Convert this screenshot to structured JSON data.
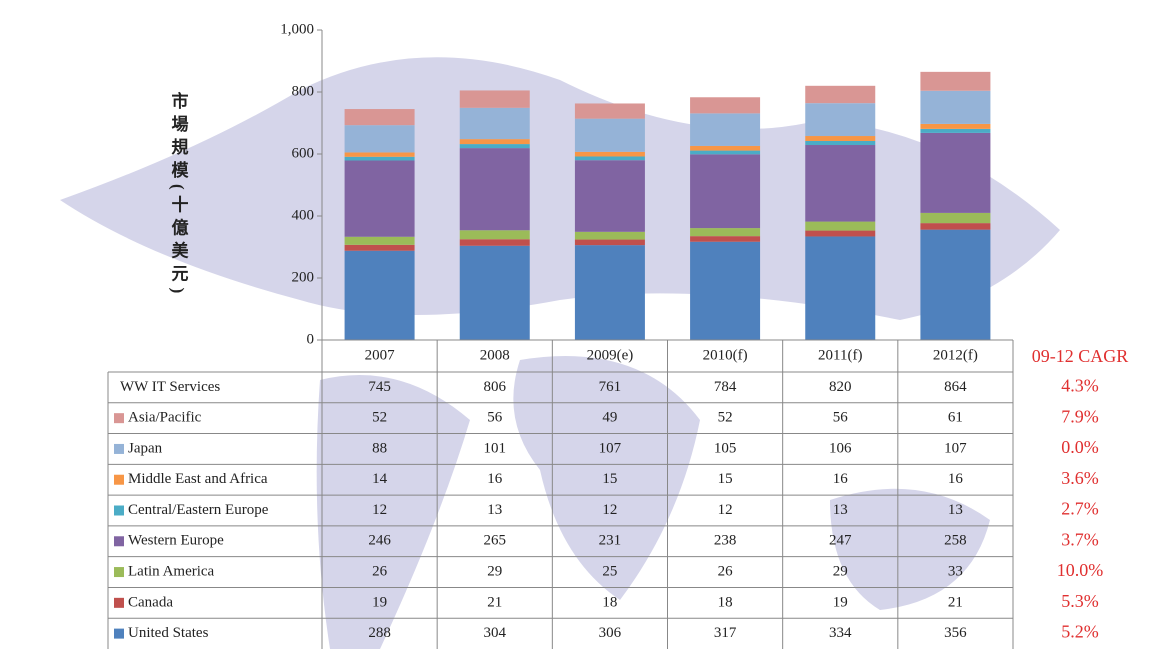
{
  "chart_data": {
    "type": "bar",
    "stacked": true,
    "ylabel": "市場規模(十億美元)",
    "categories": [
      "2007",
      "2008",
      "2009(e)",
      "2010(f)",
      "2011(f)",
      "2012(f)"
    ],
    "ylim": [
      0,
      1000
    ],
    "yticks": [
      0,
      200,
      400,
      600,
      800,
      {
        "value": 1000,
        "label": "1,000"
      }
    ],
    "cagr_header": "09-12 CAGR",
    "total": {
      "name": "WW IT Services",
      "values": [
        745,
        806,
        761,
        784,
        820,
        864
      ],
      "cagr": "4.3%"
    },
    "series": [
      {
        "name": "United States",
        "color": "#4f81bd",
        "values": [
          288,
          304,
          306,
          317,
          334,
          356
        ],
        "cagr": "5.2%"
      },
      {
        "name": "Canada",
        "color": "#c0504d",
        "values": [
          19,
          21,
          18,
          18,
          19,
          21
        ],
        "cagr": "5.3%"
      },
      {
        "name": "Latin America",
        "color": "#9bbb59",
        "values": [
          26,
          29,
          25,
          26,
          29,
          33
        ],
        "cagr": "10.0%"
      },
      {
        "name": "Western Europe",
        "color": "#8064a2",
        "values": [
          246,
          265,
          231,
          238,
          247,
          258
        ],
        "cagr": "3.7%"
      },
      {
        "name": "Central/Eastern Europe",
        "color": "#4bacc6",
        "values": [
          12,
          13,
          12,
          12,
          13,
          13
        ],
        "cagr": "2.7%"
      },
      {
        "name": "Middle East and Africa",
        "color": "#f79646",
        "values": [
          14,
          16,
          15,
          15,
          16,
          16
        ],
        "cagr": "3.6%"
      },
      {
        "name": "Japan",
        "color": "#95b3d7",
        "values": [
          88,
          101,
          107,
          105,
          106,
          107
        ],
        "cagr": "0.0%"
      },
      {
        "name": "Asia/Pacific",
        "color": "#d99694",
        "values": [
          52,
          56,
          49,
          52,
          56,
          61
        ],
        "cagr": "7.9%"
      }
    ]
  }
}
